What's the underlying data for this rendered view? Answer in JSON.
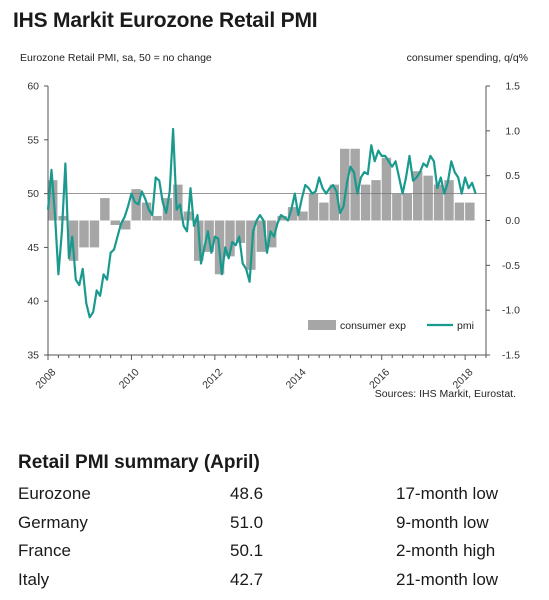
{
  "title": "IHS Markit Eurozone Retail PMI",
  "subtitle": "Eurozone Retail PMI, sa, 50 = no change",
  "right_axis_label": "consumer spending, q/q%",
  "sources": "Sources: IHS Markit, Eurostat.",
  "colors": {
    "bars": "#a6a6a6",
    "line": "#1a9a8e",
    "reference": "#777777"
  },
  "chart_data": {
    "type": "bar+line",
    "left_axis": {
      "ylim": [
        35,
        60
      ],
      "ticks": [
        "35",
        "40",
        "45",
        "50",
        "55",
        "60"
      ]
    },
    "right_axis": {
      "ylim": [
        -1.5,
        1.5
      ],
      "ticks": [
        "-1.5",
        "-1.0",
        "-0.5",
        "0.0",
        "0.5",
        "1.0",
        "1.5"
      ]
    },
    "x_ticks": [
      "2008",
      "2010",
      "2012",
      "2014",
      "2016",
      "2018"
    ],
    "x_range": [
      2008.0,
      2018.5
    ],
    "reference_line": 50,
    "legend": {
      "position": "bottom-right",
      "entries": [
        "consumer exp",
        "pmi"
      ]
    },
    "series": [
      {
        "name": "consumer exp",
        "type": "bar",
        "axis": "right",
        "x": [
          2008.0,
          2008.25,
          2008.5,
          2008.75,
          2009.0,
          2009.25,
          2009.5,
          2009.75,
          2010.0,
          2010.25,
          2010.5,
          2010.75,
          2011.0,
          2011.25,
          2011.5,
          2011.75,
          2012.0,
          2012.25,
          2012.5,
          2012.75,
          2013.0,
          2013.25,
          2013.5,
          2013.75,
          2014.0,
          2014.25,
          2014.5,
          2014.75,
          2015.0,
          2015.25,
          2015.5,
          2015.75,
          2016.0,
          2016.25,
          2016.5,
          2016.75,
          2017.0,
          2017.25,
          2017.5,
          2017.75,
          2018.0
        ],
        "values": [
          0.45,
          0.05,
          -0.45,
          -0.3,
          -0.3,
          0.25,
          -0.05,
          -0.1,
          0.35,
          0.2,
          0.05,
          0.25,
          0.4,
          0.1,
          -0.45,
          -0.35,
          -0.6,
          -0.4,
          -0.25,
          -0.55,
          -0.35,
          -0.3,
          0.05,
          0.15,
          0.1,
          0.3,
          0.2,
          0.4,
          0.8,
          0.8,
          0.4,
          0.45,
          0.7,
          0.3,
          0.3,
          0.55,
          0.5,
          0.4,
          0.45,
          0.2,
          0.2
        ]
      },
      {
        "name": "pmi",
        "type": "line",
        "axis": "left",
        "x": [
          2008.0,
          2008.083,
          2008.167,
          2008.25,
          2008.333,
          2008.417,
          2008.5,
          2008.583,
          2008.667,
          2008.75,
          2008.833,
          2008.917,
          2009.0,
          2009.083,
          2009.167,
          2009.25,
          2009.333,
          2009.417,
          2009.5,
          2009.583,
          2009.667,
          2009.75,
          2009.833,
          2009.917,
          2010.0,
          2010.083,
          2010.167,
          2010.25,
          2010.333,
          2010.417,
          2010.5,
          2010.583,
          2010.667,
          2010.75,
          2010.833,
          2010.917,
          2011.0,
          2011.083,
          2011.167,
          2011.25,
          2011.333,
          2011.417,
          2011.5,
          2011.583,
          2011.667,
          2011.75,
          2011.833,
          2011.917,
          2012.0,
          2012.083,
          2012.167,
          2012.25,
          2012.333,
          2012.417,
          2012.5,
          2012.583,
          2012.667,
          2012.75,
          2012.833,
          2012.917,
          2013.0,
          2013.083,
          2013.167,
          2013.25,
          2013.333,
          2013.417,
          2013.5,
          2013.583,
          2013.667,
          2013.75,
          2013.833,
          2013.917,
          2014.0,
          2014.083,
          2014.167,
          2014.25,
          2014.333,
          2014.417,
          2014.5,
          2014.583,
          2014.667,
          2014.75,
          2014.833,
          2014.917,
          2015.0,
          2015.083,
          2015.167,
          2015.25,
          2015.333,
          2015.417,
          2015.5,
          2015.583,
          2015.667,
          2015.75,
          2015.833,
          2015.917,
          2016.0,
          2016.083,
          2016.167,
          2016.25,
          2016.333,
          2016.417,
          2016.5,
          2016.583,
          2016.667,
          2016.75,
          2016.833,
          2016.917,
          2017.0,
          2017.083,
          2017.167,
          2017.25,
          2017.333,
          2017.417,
          2017.5,
          2017.583,
          2017.667,
          2017.75,
          2017.833,
          2017.917,
          2018.0,
          2018.083,
          2018.167,
          2018.25
        ],
        "values": [
          48.5,
          52.2,
          48.0,
          42.5,
          46.5,
          52.8,
          44.0,
          46.0,
          42.0,
          41.5,
          43.0,
          39.8,
          38.5,
          39.0,
          41.0,
          40.5,
          42.5,
          42.0,
          44.5,
          44.8,
          46.0,
          47.2,
          47.8,
          48.8,
          50.0,
          49.2,
          49.0,
          50.2,
          49.5,
          48.5,
          48.0,
          51.5,
          51.2,
          49.2,
          48.2,
          50.2,
          56.0,
          48.5,
          49.0,
          47.0,
          46.5,
          50.5,
          47.0,
          48.0,
          43.5,
          45.0,
          46.5,
          44.5,
          46.0,
          45.8,
          42.5,
          45.0,
          44.0,
          45.5,
          45.2,
          46.0,
          43.5,
          43.0,
          41.8,
          46.5,
          47.5,
          48.0,
          47.5,
          44.5,
          46.5,
          46.0,
          47.2,
          48.0,
          47.8,
          47.5,
          48.5,
          50.0,
          48.0,
          49.5,
          50.8,
          50.5,
          50.0,
          50.2,
          51.5,
          50.5,
          50.0,
          50.5,
          50.8,
          50.2,
          48.2,
          48.8,
          51.0,
          52.5,
          52.0,
          50.0,
          51.5,
          52.0,
          51.8,
          54.5,
          53.0,
          54.0,
          53.5,
          53.5,
          53.0,
          52.5,
          53.0,
          51.5,
          50.0,
          51.5,
          53.5,
          51.2,
          51.5,
          52.0,
          52.8,
          52.5,
          53.5,
          53.0,
          50.5,
          51.5,
          50.0,
          51.0,
          53.0,
          52.0,
          51.5,
          50.0,
          51.5,
          50.5,
          51.0,
          50.0
        ]
      }
    ]
  },
  "summary": {
    "title": "Retail PMI summary (April)",
    "rows": [
      {
        "country": "Eurozone",
        "value": "48.6",
        "note": "17-month low"
      },
      {
        "country": "Germany",
        "value": "51.0",
        "note": "9-month low"
      },
      {
        "country": "France",
        "value": "50.1",
        "note": "2-month high"
      },
      {
        "country": "Italy",
        "value": "42.7",
        "note": "21-month low"
      }
    ]
  }
}
